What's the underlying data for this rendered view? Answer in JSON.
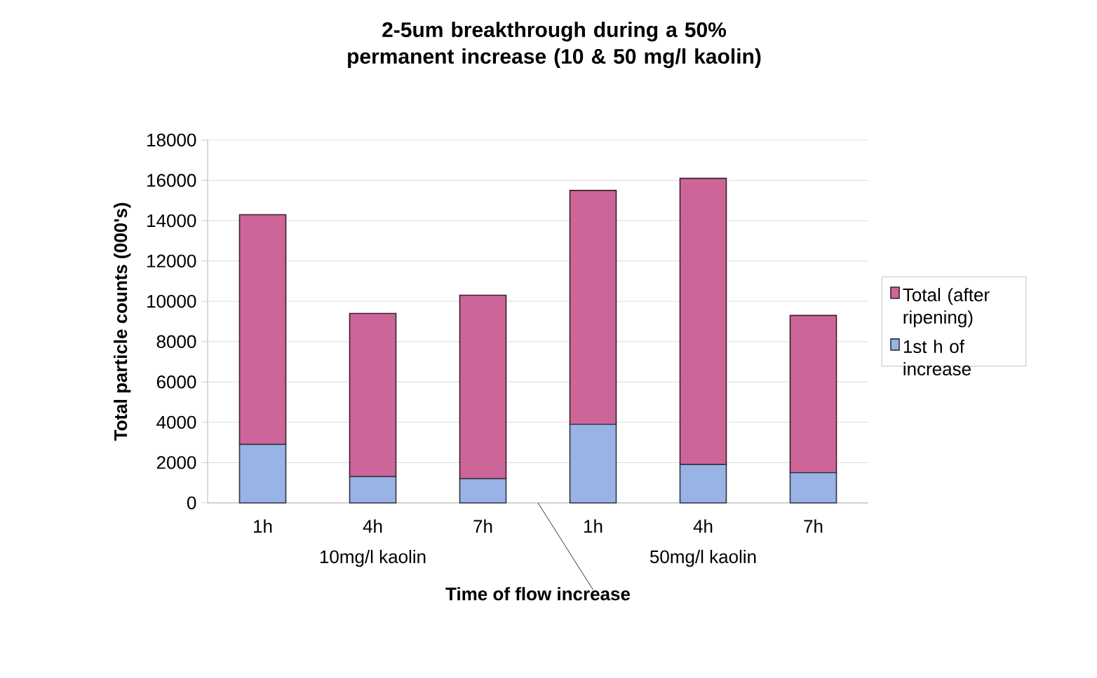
{
  "chart_data": {
    "type": "bar",
    "title": "2-5um breakthrough during a 50% permanent increase (10 & 50 mg/l kaolin)",
    "xlabel": "Time of flow increase",
    "ylabel": "Total particle counts (000's)",
    "categories": [
      "1h",
      "4h",
      "7h",
      "1h",
      "4h",
      "7h"
    ],
    "stacked": true,
    "series": [
      {
        "name": "1st h of increase",
        "color": "#99b3e6",
        "values": [
          2900,
          1300,
          1200,
          3900,
          1900,
          1500
        ]
      },
      {
        "name": "Total (after ripening)",
        "color": "#cc6699",
        "values": [
          11400,
          8100,
          9100,
          11600,
          14200,
          7800
        ]
      }
    ],
    "annotations": [
      "10mg/l kaolin",
      "50mg/l kaolin"
    ],
    "ylim": [
      0,
      18000
    ],
    "yticks": [
      0,
      2000,
      4000,
      6000,
      8000,
      10000,
      12000,
      14000,
      16000,
      18000
    ],
    "grid": "y",
    "legend": "right"
  }
}
